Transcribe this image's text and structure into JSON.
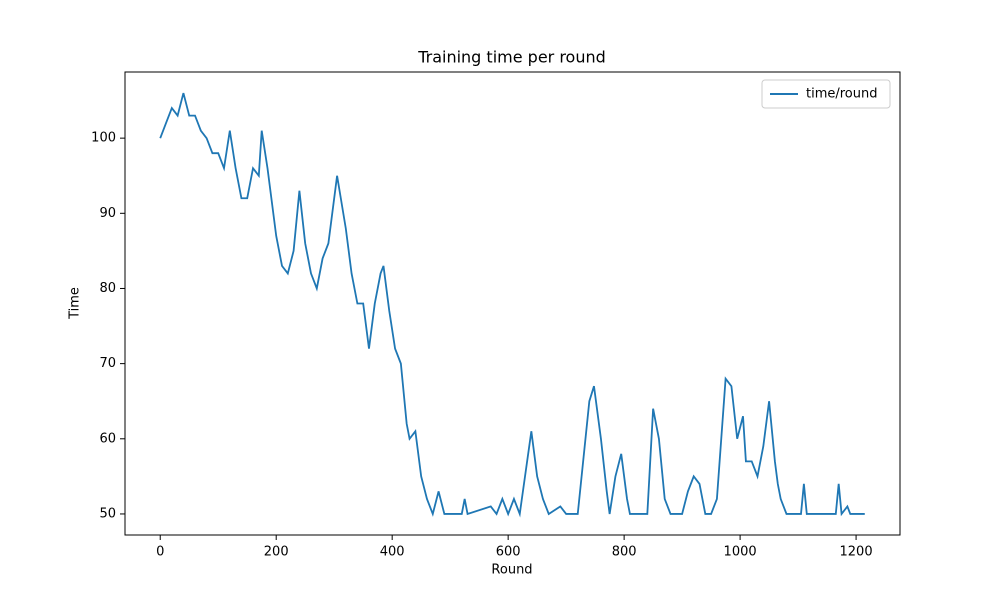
{
  "chart_data": {
    "type": "line",
    "title": "Training time per round",
    "xlabel": "Round",
    "ylabel": "Time",
    "x": [
      0,
      10,
      20,
      30,
      40,
      50,
      60,
      70,
      80,
      90,
      100,
      110,
      120,
      130,
      140,
      150,
      160,
      170,
      175,
      185,
      200,
      210,
      220,
      230,
      240,
      250,
      260,
      270,
      280,
      290,
      305,
      320,
      330,
      340,
      350,
      360,
      370,
      380,
      385,
      395,
      405,
      415,
      425,
      430,
      440,
      450,
      460,
      470,
      480,
      490,
      500,
      520,
      525,
      530,
      570,
      580,
      590,
      600,
      610,
      620,
      640,
      650,
      660,
      670,
      690,
      700,
      720,
      740,
      748,
      760,
      770,
      775,
      785,
      795,
      805,
      810,
      840,
      850,
      860,
      870,
      880,
      900,
      910,
      920,
      930,
      940,
      950,
      960,
      975,
      985,
      995,
      1005,
      1010,
      1020,
      1030,
      1040,
      1050,
      1060,
      1065,
      1070,
      1080,
      1105,
      1110,
      1115,
      1165,
      1170,
      1175,
      1185,
      1190,
      1215
    ],
    "series": [
      {
        "name": "time/round",
        "color": "#1f77b4",
        "values": [
          100,
          102,
          104,
          103,
          106,
          103,
          103,
          101,
          100,
          98,
          98,
          96,
          101,
          96,
          92,
          92,
          96,
          95,
          101,
          96,
          87,
          83,
          82,
          85,
          93,
          86,
          82,
          80,
          84,
          86,
          95,
          88,
          82,
          78,
          78,
          72,
          78,
          82,
          83,
          77,
          72,
          70,
          62,
          60,
          61,
          55,
          52,
          50,
          53,
          50,
          50,
          50,
          52,
          50,
          51,
          50,
          52,
          50,
          52,
          50,
          61,
          55,
          52,
          50,
          51,
          50,
          50,
          65,
          67,
          60,
          53,
          50,
          55,
          58,
          52,
          50,
          50,
          64,
          60,
          52,
          50,
          50,
          53,
          55,
          54,
          50,
          50,
          52,
          68,
          67,
          60,
          63,
          57,
          57,
          55,
          59,
          65,
          57,
          54,
          52,
          50,
          50,
          54,
          50,
          50,
          54,
          50,
          51,
          50,
          50
        ]
      }
    ],
    "xlim": [
      -60.75,
      1275.75
    ],
    "ylim": [
      47.2,
      108.8
    ],
    "xticks": [
      0,
      200,
      400,
      600,
      800,
      1000,
      1200
    ],
    "yticks": [
      50,
      60,
      70,
      80,
      90,
      100
    ],
    "legend": "upper right"
  }
}
